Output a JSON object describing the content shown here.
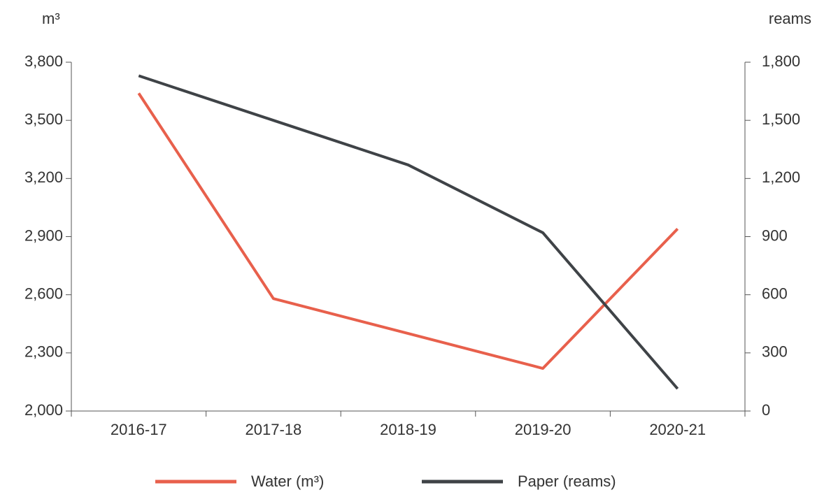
{
  "chart_data": {
    "type": "line",
    "y_label": "m³",
    "y2_label": "reams",
    "categories": [
      "2016-17",
      "2017-18",
      "2018-19",
      "2019-20",
      "2020-21"
    ],
    "series": [
      {
        "name": "Water (m³)",
        "color": "#e8604c",
        "values": [
          3640,
          2580,
          2400,
          2220,
          2940
        ]
      },
      {
        "name": "Paper (reams)",
        "color": "#3f4347",
        "axis": "y2",
        "values": [
          1730,
          1500,
          1270,
          920,
          115
        ]
      }
    ],
    "ylim": [
      2000,
      3800
    ],
    "yticks": [
      {
        "value": 2000,
        "label": "2,000"
      },
      {
        "value": 2300,
        "label": "2,300"
      },
      {
        "value": 2600,
        "label": "2,600"
      },
      {
        "value": 2900,
        "label": "2,900"
      },
      {
        "value": 3200,
        "label": "3,200"
      },
      {
        "value": 3500,
        "label": "3,500"
      },
      {
        "value": 3800,
        "label": "3,800"
      }
    ],
    "y2lim": [
      0,
      1800
    ],
    "y2ticks": [
      0,
      300,
      600,
      900,
      {
        "value": 1200,
        "label": "1,200"
      },
      {
        "value": 1500,
        "label": "1,500"
      },
      {
        "value": 1800,
        "label": "1,800"
      }
    ],
    "grid": false,
    "legend": "bottom"
  }
}
